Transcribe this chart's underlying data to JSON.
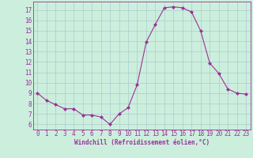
{
  "x": [
    0,
    1,
    2,
    3,
    4,
    5,
    6,
    7,
    8,
    9,
    10,
    11,
    12,
    13,
    14,
    15,
    16,
    17,
    18,
    19,
    20,
    21,
    22,
    23
  ],
  "y": [
    9.0,
    8.3,
    7.9,
    7.5,
    7.5,
    6.9,
    6.9,
    6.7,
    6.0,
    7.0,
    7.6,
    9.8,
    13.9,
    15.6,
    17.2,
    17.3,
    17.2,
    16.8,
    15.0,
    11.9,
    10.9,
    9.4,
    9.0,
    8.9
  ],
  "line_color": "#993399",
  "marker": "D",
  "marker_size": 2,
  "bg_color": "#cceedd",
  "grid_color": "#aacccc",
  "xlabel": "Windchill (Refroidissement éolien,°C)",
  "xlabel_color": "#993399",
  "tick_color": "#993399",
  "ylim": [
    5.5,
    17.8
  ],
  "xlim": [
    -0.5,
    23.5
  ],
  "yticks": [
    6,
    7,
    8,
    9,
    10,
    11,
    12,
    13,
    14,
    15,
    16,
    17
  ],
  "xticks": [
    0,
    1,
    2,
    3,
    4,
    5,
    6,
    7,
    8,
    9,
    10,
    11,
    12,
    13,
    14,
    15,
    16,
    17,
    18,
    19,
    20,
    21,
    22,
    23
  ],
  "tick_fontsize": 5.5,
  "xlabel_fontsize": 5.5
}
